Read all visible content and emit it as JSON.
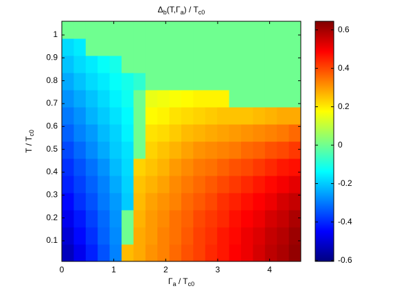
{
  "chart_data": {
    "type": "heatmap",
    "title": [
      "Δ",
      {
        "sub": "b"
      },
      "(T,Γ",
      {
        "sub": "a"
      },
      ") / T",
      {
        "sub": "c0"
      }
    ],
    "x_label": [
      "Γ",
      {
        "sub": "a"
      },
      " / T",
      {
        "sub": "c0"
      }
    ],
    "y_label": [
      "T / T",
      {
        "sub": "c0"
      }
    ],
    "colormap": "jet",
    "clim": [
      -0.605,
      0.645
    ],
    "cticks": [
      -0.6,
      -0.4,
      -0.2,
      0,
      0.2,
      0.4,
      0.6
    ],
    "xlim": [
      0,
      4.6
    ],
    "ylim": [
      0.01,
      1.06
    ],
    "xticks": [
      0,
      1,
      2,
      3,
      4
    ],
    "yticks": [
      0.1,
      0.2,
      0.3,
      0.4,
      0.5,
      0.6,
      0.7,
      0.8,
      0.9,
      1
    ],
    "x_edges": [
      0,
      0.23,
      0.46,
      0.69,
      0.92,
      1.15,
      1.38,
      1.61,
      1.84,
      2.07,
      2.3,
      2.53,
      2.76,
      2.99,
      3.22,
      3.45,
      3.68,
      3.91,
      4.14,
      4.37,
      4.6
    ],
    "y_edges": [
      0.01,
      0.085,
      0.16,
      0.235,
      0.31,
      0.385,
      0.46,
      0.535,
      0.61,
      0.685,
      0.76,
      0.835,
      0.91,
      0.985,
      1.06
    ],
    "z": [
      [
        -0.53,
        -0.47,
        -0.41,
        -0.35,
        -0.29,
        0.26,
        0.28,
        0.31,
        0.33,
        0.36,
        0.39,
        0.41,
        0.44,
        0.46,
        0.49,
        0.51,
        0.54,
        0.57,
        0.59,
        0.62
      ],
      [
        -0.5,
        -0.44,
        -0.39,
        -0.33,
        -0.28,
        0,
        0.28,
        0.3,
        0.33,
        0.35,
        0.38,
        0.41,
        0.43,
        0.46,
        0.48,
        0.51,
        0.53,
        0.56,
        0.58,
        0.61
      ],
      [
        -0.47,
        -0.42,
        -0.37,
        -0.32,
        -0.27,
        0,
        0.27,
        0.3,
        0.32,
        0.35,
        0.37,
        0.4,
        0.42,
        0.44,
        0.47,
        0.49,
        0.51,
        0.54,
        0.56,
        0.59
      ],
      [
        -0.44,
        -0.39,
        -0.35,
        -0.3,
        -0.26,
        -0.2,
        0.26,
        0.29,
        0.31,
        0.33,
        0.36,
        0.38,
        0.4,
        0.43,
        0.45,
        0.47,
        0.49,
        0.51,
        0.54,
        0.56
      ],
      [
        -0.41,
        -0.37,
        -0.33,
        -0.29,
        -0.24,
        -0.19,
        0.25,
        0.27,
        0.29,
        0.32,
        0.34,
        0.36,
        0.38,
        0.4,
        0.42,
        0.44,
        0.46,
        0.48,
        0.5,
        0.52
      ],
      [
        -0.39,
        -0.35,
        -0.31,
        -0.27,
        -0.22,
        -0.18,
        0.23,
        0.25,
        0.27,
        0.3,
        0.32,
        0.34,
        0.35,
        0.37,
        0.39,
        0.4,
        0.42,
        0.44,
        0.46,
        0.47
      ],
      [
        -0.36,
        -0.32,
        -0.28,
        -0.24,
        -0.2,
        -0.17,
        0,
        0.23,
        0.25,
        0.27,
        0.29,
        0.31,
        0.32,
        0.33,
        0.34,
        0.36,
        0.37,
        0.39,
        0.4,
        0.42
      ],
      [
        -0.33,
        -0.29,
        -0.26,
        -0.22,
        -0.19,
        -0.15,
        0,
        0.21,
        0.22,
        0.24,
        0.26,
        0.27,
        0.28,
        0.29,
        0.3,
        0.31,
        0.32,
        0.33,
        0.34,
        0.36
      ],
      [
        -0.3,
        -0.27,
        -0.23,
        -0.2,
        -0.17,
        -0.14,
        0,
        0.18,
        0.19,
        0.21,
        0.22,
        0.23,
        0.24,
        0.25,
        0.25,
        0.25,
        0.26,
        0.27,
        0.28,
        0.28
      ],
      [
        -0.27,
        -0.24,
        -0.21,
        -0.18,
        -0.15,
        -0.12,
        0,
        0.15,
        0.16,
        0.17,
        0.18,
        0.19,
        0.19,
        0.19,
        0,
        0,
        0,
        0,
        0,
        0
      ],
      [
        -0.24,
        -0.21,
        -0.18,
        -0.16,
        -0.13,
        -0.11,
        -0.08,
        0,
        0,
        0,
        0,
        0,
        0,
        0,
        0,
        0,
        0,
        0,
        0,
        0
      ],
      [
        -0.21,
        -0.18,
        -0.16,
        -0.13,
        -0.11,
        0,
        0,
        0,
        0,
        0,
        0,
        0,
        0,
        0,
        0,
        0,
        0,
        0,
        0,
        0
      ],
      [
        -0.18,
        -0.16,
        0,
        0,
        0,
        0,
        0,
        0,
        0,
        0,
        0,
        0,
        0,
        0,
        0,
        0,
        0,
        0,
        0,
        0
      ],
      [
        0,
        0,
        0,
        0,
        0,
        0,
        0,
        0,
        0,
        0,
        0,
        0,
        0,
        0,
        0,
        0,
        0,
        0,
        0,
        0
      ]
    ]
  }
}
